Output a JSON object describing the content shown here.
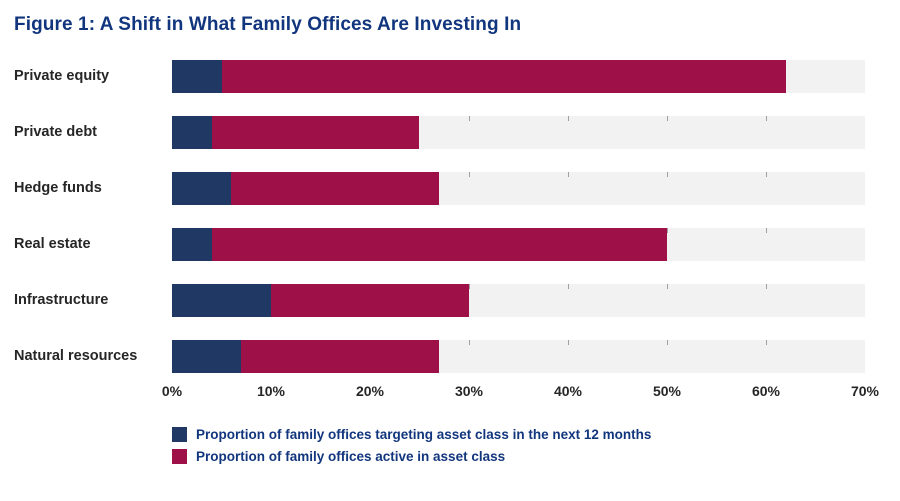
{
  "title": "Figure 1: A Shift in What Family Offices Are Investing In",
  "colors": {
    "title": "#12367e",
    "navy": "#1f3864",
    "crimson": "#9e1148",
    "track": "#f2f2f2",
    "axis_text": "#262626",
    "legend_text": "#12367e"
  },
  "chart_data": {
    "type": "bar",
    "orientation": "horizontal",
    "stacked": true,
    "title": "Figure 1: A Shift in What Family Offices Are Investing In",
    "categories": [
      "Private equity",
      "Private debt",
      "Hedge funds",
      "Real estate",
      "Infrastructure",
      "Natural resources"
    ],
    "series": [
      {
        "name": "Proportion of family offices targeting asset class in the next 12 months",
        "color": "#1f3864",
        "values": [
          5,
          4,
          6,
          4,
          10,
          7
        ]
      },
      {
        "name": "Proportion of family offices active in asset class",
        "color": "#9e1148",
        "values": [
          57,
          21,
          21,
          46,
          20,
          20
        ]
      }
    ],
    "totals": [
      62,
      25,
      27,
      50,
      30,
      27
    ],
    "xlim": [
      0,
      70
    ],
    "x_ticks": [
      "0%",
      "10%",
      "20%",
      "30%",
      "40%",
      "50%",
      "60%",
      "70%"
    ],
    "x_tick_values": [
      0,
      10,
      20,
      30,
      40,
      50,
      60,
      70
    ],
    "grid": false,
    "legend_position": "bottom"
  },
  "legend": {
    "items": [
      {
        "label": "Proportion of family offices targeting asset class in the next 12 months",
        "color": "#1f3864"
      },
      {
        "label": "Proportion of family offices active in asset class",
        "color": "#9e1148"
      }
    ]
  }
}
